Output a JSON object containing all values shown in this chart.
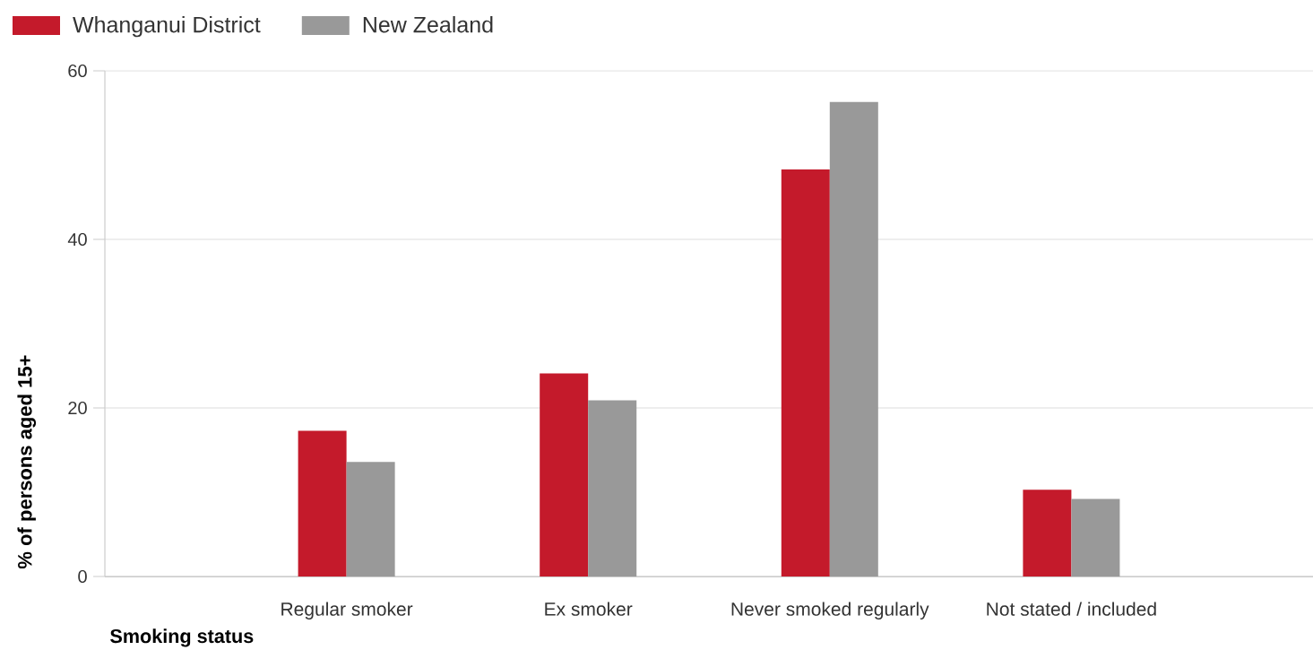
{
  "chart_data": {
    "type": "bar",
    "xlabel": "Smoking status",
    "ylabel": "% of persons aged 15+",
    "categories": [
      "Regular smoker",
      "Ex smoker",
      "Never smoked regularly",
      "Not stated / included"
    ],
    "series": [
      {
        "name": "Whanganui District",
        "color": "#c41a2b",
        "values": [
          17.3,
          24.1,
          48.3,
          10.3
        ]
      },
      {
        "name": "New Zealand",
        "color": "#999999",
        "values": [
          13.6,
          20.9,
          56.3,
          9.2
        ]
      }
    ],
    "ylim": [
      0,
      60
    ],
    "yticks": [
      0,
      20,
      40,
      60
    ],
    "grid": "y",
    "legend": "top left"
  }
}
